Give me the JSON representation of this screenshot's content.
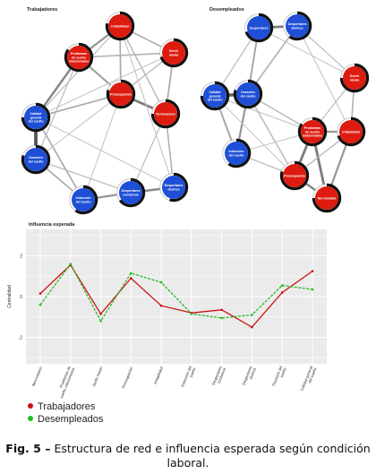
{
  "networks": [
    {
      "title": "Trabajadores",
      "nodes": [
        {
          "id": "irr",
          "label": "Irritabilidad",
          "group": "red",
          "level": 0.78
        },
        {
          "id": "sue",
          "label": "Problemas de sueño relacionados",
          "group": "red",
          "level": 0.85
        },
        {
          "id": "sen",
          "label": "Sentir miedo",
          "group": "red",
          "level": 0.7
        },
        {
          "id": "pre",
          "label": "Preocupación",
          "group": "red",
          "level": 0.8
        },
        {
          "id": "nerv",
          "label": "Nerviosismo",
          "group": "red",
          "level": 0.75
        },
        {
          "id": "cal",
          "label": "Calidad general del sueño",
          "group": "blue",
          "level": 0.75
        },
        {
          "id": "dur",
          "label": "Duración del sueño",
          "group": "blue",
          "level": 0.8
        },
        {
          "id": "ind",
          "label": "Inducción del sueño",
          "group": "blue",
          "level": 0.6
        },
        {
          "id": "dnoc",
          "label": "Despertares nocturnos",
          "group": "blue",
          "level": 0.65
        },
        {
          "id": "ddia",
          "label": "Despertares diurnos",
          "group": "blue",
          "level": 0.55
        }
      ],
      "edges": [
        [
          "irr",
          "sue",
          0.5
        ],
        [
          "irr",
          "pre",
          0.35
        ],
        [
          "irr",
          "sen",
          0.3
        ],
        [
          "sue",
          "pre",
          0.45
        ],
        [
          "sue",
          "sen",
          0.3
        ],
        [
          "sen",
          "nerv",
          0.35
        ],
        [
          "pre",
          "nerv",
          0.7
        ],
        [
          "pre",
          "sen",
          0.25
        ],
        [
          "irr",
          "nerv",
          0.25
        ],
        [
          "cal",
          "dur",
          1.0
        ],
        [
          "cal",
          "ind",
          0.35
        ],
        [
          "dur",
          "ind",
          0.35
        ],
        [
          "ind",
          "dnoc",
          0.5
        ],
        [
          "dnoc",
          "ddia",
          0.6
        ],
        [
          "sue",
          "cal",
          0.6
        ],
        [
          "pre",
          "cal",
          0.35
        ],
        [
          "sue",
          "dur",
          0.2
        ],
        [
          "nerv",
          "ddia",
          0.3
        ],
        [
          "nerv",
          "dnoc",
          0.2
        ],
        [
          "cal",
          "irr",
          0.2
        ],
        [
          "dur",
          "dnoc",
          0.2
        ],
        [
          "pre",
          "ind",
          0.15
        ],
        [
          "sen",
          "cal",
          0.15
        ],
        [
          "irr",
          "ddia",
          0.15
        ],
        [
          "cal",
          "ddia",
          0.15
        ],
        [
          "dur",
          "pre",
          0.15
        ]
      ]
    },
    {
      "title": "Desempleados",
      "nodes": [
        {
          "id": "desp",
          "label": "Despertares",
          "group": "blue",
          "level": 0.7
        },
        {
          "id": "dnoc",
          "label": "Despertares diurnos",
          "group": "blue",
          "level": 0.6
        },
        {
          "id": "sen",
          "label": "Sentir miedo",
          "group": "red",
          "level": 0.75
        },
        {
          "id": "cal",
          "label": "Calidad general del sueño",
          "group": "blue",
          "level": 0.75
        },
        {
          "id": "dur",
          "label": "Duración del sueño",
          "group": "blue",
          "level": 0.8
        },
        {
          "id": "sue",
          "label": "Problemas de sueño relacionados",
          "group": "red",
          "level": 0.85
        },
        {
          "id": "irr",
          "label": "Irritabilidad",
          "group": "red",
          "level": 0.7
        },
        {
          "id": "ind",
          "label": "Inducción del sueño",
          "group": "blue",
          "level": 0.6
        },
        {
          "id": "pre",
          "label": "Preocupación",
          "group": "red",
          "level": 0.8
        },
        {
          "id": "nerv",
          "label": "Nerviosidad",
          "group": "red",
          "level": 0.75
        }
      ],
      "edges": [
        [
          "desp",
          "dnoc",
          0.7
        ],
        [
          "desp",
          "dur",
          0.4
        ],
        [
          "desp",
          "cal",
          0.2
        ],
        [
          "dnoc",
          "dur",
          0.3
        ],
        [
          "dnoc",
          "sen",
          0.2
        ],
        [
          "cal",
          "dur",
          0.9
        ],
        [
          "dur",
          "ind",
          0.5
        ],
        [
          "cal",
          "ind",
          0.4
        ],
        [
          "dur",
          "sue",
          0.25
        ],
        [
          "dur",
          "pre",
          0.3
        ],
        [
          "sue",
          "irr",
          0.5
        ],
        [
          "sue",
          "pre",
          0.7
        ],
        [
          "sue",
          "nerv",
          0.7
        ],
        [
          "pre",
          "nerv",
          0.6
        ],
        [
          "irr",
          "nerv",
          0.5
        ],
        [
          "sen",
          "irr",
          0.3
        ],
        [
          "sen",
          "sue",
          0.2
        ],
        [
          "pre",
          "dur",
          0.15
        ],
        [
          "ind",
          "pre",
          0.2
        ],
        [
          "cal",
          "pre",
          0.15
        ],
        [
          "desp",
          "sen",
          0.15
        ],
        [
          "irr",
          "pre",
          0.25
        ],
        [
          "ind",
          "sue",
          0.15
        ],
        [
          "dnoc",
          "irr",
          0.15
        ],
        [
          "cal",
          "sue",
          0.15
        ]
      ]
    }
  ],
  "chart_data": {
    "type": "line",
    "title": "Influencia esperada",
    "ylabel": "Centralidad",
    "xlabel": "",
    "categories": [
      "Nerviosismo",
      "Problemas de sueño relacionados",
      "Sentir miedo",
      "Preocupación",
      "Irritabilidad",
      "Inducción del sueño",
      "Despertares nocturnos",
      "Despertares diurnos",
      "Duración del sueño",
      "Calidad general del sueño"
    ],
    "ylim": [
      -3.3,
      3.3
    ],
    "yticks": [
      2,
      0,
      -2
    ],
    "grid": true,
    "series": [
      {
        "name": "Trabajadores",
        "color": "#cc1111",
        "dash": false,
        "values": [
          0.15,
          1.55,
          -0.85,
          0.9,
          -0.45,
          -0.8,
          -0.65,
          -1.5,
          0.2,
          1.25
        ]
      },
      {
        "name": "Desempleados",
        "color": "#22bb22",
        "dash": true,
        "values": [
          -0.4,
          1.6,
          -1.2,
          1.15,
          0.7,
          -0.85,
          -1.05,
          -0.9,
          0.55,
          0.35
        ]
      }
    ],
    "legend_placement": "bottom-left"
  },
  "caption": {
    "prefix": "Fig. 5 –",
    "text": "Estructura de red e influencia esperada según condición laboral."
  },
  "colors": {
    "red": "#dd1c0f",
    "blue": "#1f4fd6",
    "panel": "#ebebeb",
    "grid": "#ffffff"
  }
}
